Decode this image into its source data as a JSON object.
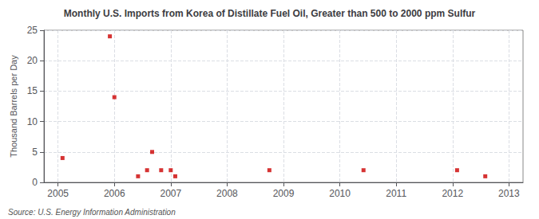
{
  "chart_data": {
    "type": "scatter",
    "title": "Monthly U.S. Imports from Korea of Distillate Fuel Oil, Greater than 500 to 2000 ppm Sulfur",
    "ylabel": "Thousand Barrels per Day",
    "source": "Source: U.S. Energy Information Administration",
    "x": [
      2005.08,
      2005.92,
      2006.0,
      2006.42,
      2006.58,
      2006.67,
      2006.83,
      2007.0,
      2007.08,
      2008.75,
      2010.42,
      2012.08,
      2012.58
    ],
    "values": [
      4.0,
      24.0,
      14.0,
      1.0,
      2.0,
      5.0,
      2.0,
      2.0,
      1.0,
      2.0,
      2.0,
      2.0,
      1.0
    ],
    "color": "#cc0000",
    "marker": "square",
    "xlim": [
      2004.75,
      2013.25
    ],
    "xticks": [
      2005,
      2006,
      2007,
      2008,
      2009,
      2010,
      2011,
      2012,
      2013
    ],
    "ylim": [
      0,
      25
    ],
    "yticks": [
      0,
      5,
      10,
      15,
      20,
      25
    ],
    "grid": true
  }
}
